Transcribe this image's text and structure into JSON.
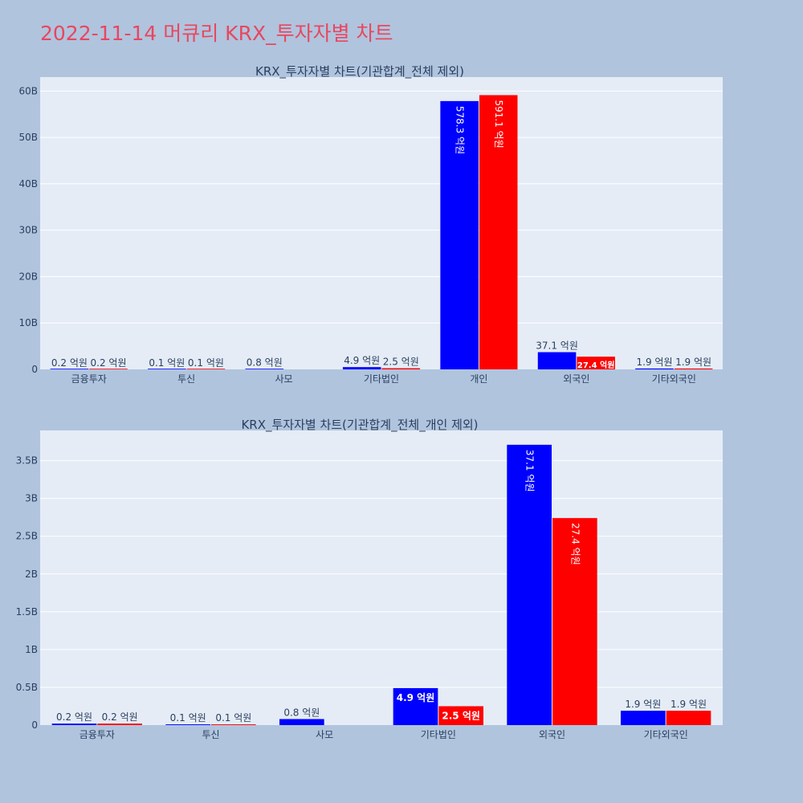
{
  "page_title": "2022-11-14 머큐리 KRX_투자자별 차트",
  "colors": {
    "series1": "#0000ff",
    "series2": "#ff0000",
    "plot_bg": "#e5ecf6",
    "page_bg": "#b0c4de",
    "title": "#e8475f"
  },
  "chart_data": [
    {
      "type": "bar",
      "title": "KRX_투자자별 차트(기관합계_전체 제외)",
      "categories": [
        "금융투자",
        "투신",
        "사모",
        "기타법인",
        "개인",
        "외국인",
        "기타외국인"
      ],
      "series": [
        {
          "values": [
            20000000,
            10000000,
            80000000,
            490000000,
            57830000000,
            3710000000,
            190000000
          ],
          "labels": [
            "0.2 억원",
            "0.1 억원",
            "0.8 억원",
            "4.9 억원",
            "578.3 억원",
            "37.1 억원",
            "1.9 억원"
          ]
        },
        {
          "values": [
            20000000,
            10000000,
            null,
            250000000,
            59110000000,
            2740000000,
            190000000
          ],
          "labels": [
            "0.2 억원",
            "0.1 억원",
            "",
            "2.5 억원",
            "591.1 억원",
            "27.4 억원",
            "1.9 억원"
          ]
        }
      ],
      "ylim": [
        0,
        63000000000
      ],
      "yticks": [
        0,
        10000000000,
        20000000000,
        30000000000,
        40000000000,
        50000000000,
        60000000000
      ],
      "yticklabels": [
        "0",
        "10B",
        "20B",
        "30B",
        "40B",
        "50B",
        "60B"
      ],
      "grid": true
    },
    {
      "type": "bar",
      "title": "KRX_투자자별 차트(기관합계_전체_개인 제외)",
      "categories": [
        "금융투자",
        "투신",
        "사모",
        "기타법인",
        "외국인",
        "기타외국인"
      ],
      "series": [
        {
          "values": [
            20000000,
            10000000,
            80000000,
            490000000,
            3710000000,
            190000000
          ],
          "labels": [
            "0.2 억원",
            "0.1 억원",
            "0.8 억원",
            "4.9 억원",
            "37.1 억원",
            "1.9 억원"
          ]
        },
        {
          "values": [
            20000000,
            10000000,
            null,
            250000000,
            2740000000,
            190000000
          ],
          "labels": [
            "0.2 억원",
            "0.1 억원",
            "",
            "2.5 억원",
            "27.4 억원",
            "1.9 억원"
          ]
        }
      ],
      "ylim": [
        0,
        3900000000
      ],
      "yticks": [
        0,
        500000000,
        1000000000,
        1500000000,
        2000000000,
        2500000000,
        3000000000,
        3500000000
      ],
      "yticklabels": [
        "0",
        "0.5B",
        "1B",
        "1.5B",
        "2B",
        "2.5B",
        "3B",
        "3.5B"
      ],
      "grid": true
    }
  ]
}
